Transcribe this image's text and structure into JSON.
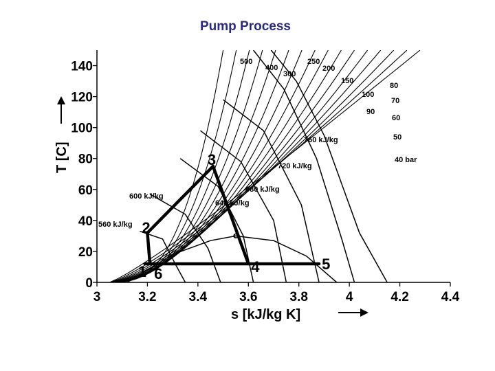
{
  "title": "Pump Process",
  "chart_data": {
    "type": "line",
    "xlabel": "s [kJ/kg K]",
    "ylabel": "T [C]",
    "xlim": [
      3,
      4.4
    ],
    "ylim": [
      0,
      150
    ],
    "x_ticks": [
      3,
      3.2,
      3.4,
      3.6,
      3.8,
      4,
      4.2,
      4.4
    ],
    "x_tick_labels": [
      "3",
      "3.2",
      "3.4",
      "3.6",
      "3.8",
      "4",
      "4.2",
      "4.4"
    ],
    "y_ticks": [
      0,
      20,
      40,
      60,
      80,
      100,
      120,
      140
    ],
    "y_tick_labels": [
      "0",
      "20",
      "40",
      "60",
      "80",
      "100",
      "120",
      "140"
    ],
    "grid": false,
    "cycle": {
      "name": "",
      "points": [
        {
          "label": "1",
          "s": 3.19,
          "T": 12
        },
        {
          "label": "2",
          "s": 3.2,
          "T": 32
        },
        {
          "label": "3",
          "s": 3.46,
          "T": 75
        },
        {
          "label": "4",
          "s": 3.6,
          "T": 12
        },
        {
          "label": "5",
          "s": 3.88,
          "T": 12
        },
        {
          "label": "6",
          "s": 3.21,
          "T": 12
        }
      ]
    },
    "critical_point": {
      "label": "C",
      "s": 3.55,
      "T": 30
    },
    "isobar_labels": [
      "500",
      "400",
      "300",
      "250",
      "200",
      "150",
      "100",
      "90",
      "80",
      "70",
      "60",
      "50",
      "40 bar"
    ],
    "isenthalp_labels": [
      "760 kJ/kg",
      "720 kJ/kg",
      "680 kJ/kg",
      "640 kJ/kg",
      "600 kJ/kg",
      "560 kJ/kg"
    ]
  }
}
